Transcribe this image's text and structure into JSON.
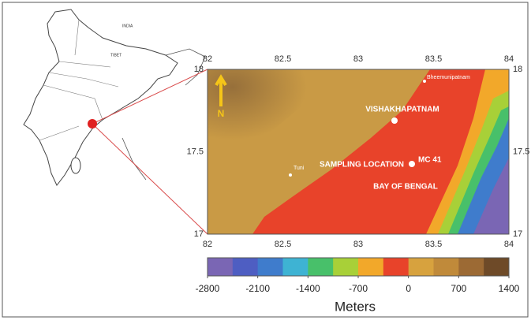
{
  "map": {
    "inset_labels": [
      "INDIA",
      "TIBET"
    ],
    "lon_ticks": [
      82,
      82.5,
      83,
      83.5,
      84
    ],
    "lat_ticks": [
      18,
      17.5,
      17
    ],
    "north": "N",
    "places": {
      "bheemunipatnam": "Bheemunipatnam",
      "vishakhapatnam": "VISHAKHAPATNAM",
      "tuni": "Tuni",
      "sampling": "SAMPLING LOCATION",
      "station": "MC 41",
      "bay": "BAY OF BENGAL"
    },
    "colorbar": {
      "range": [
        -2800,
        1400
      ],
      "ticks": [
        -2800,
        -2100,
        -1400,
        -700,
        0,
        700,
        1400
      ],
      "colors": [
        "#7a66b4",
        "#4e5ec2",
        "#3f7ccc",
        "#3eb3d3",
        "#48c06a",
        "#a8d038",
        "#f2a82a",
        "#e8432a",
        "#d7a23e",
        "#c08a3a",
        "#9c6a34",
        "#6e4a28"
      ],
      "label": "Meters"
    }
  }
}
